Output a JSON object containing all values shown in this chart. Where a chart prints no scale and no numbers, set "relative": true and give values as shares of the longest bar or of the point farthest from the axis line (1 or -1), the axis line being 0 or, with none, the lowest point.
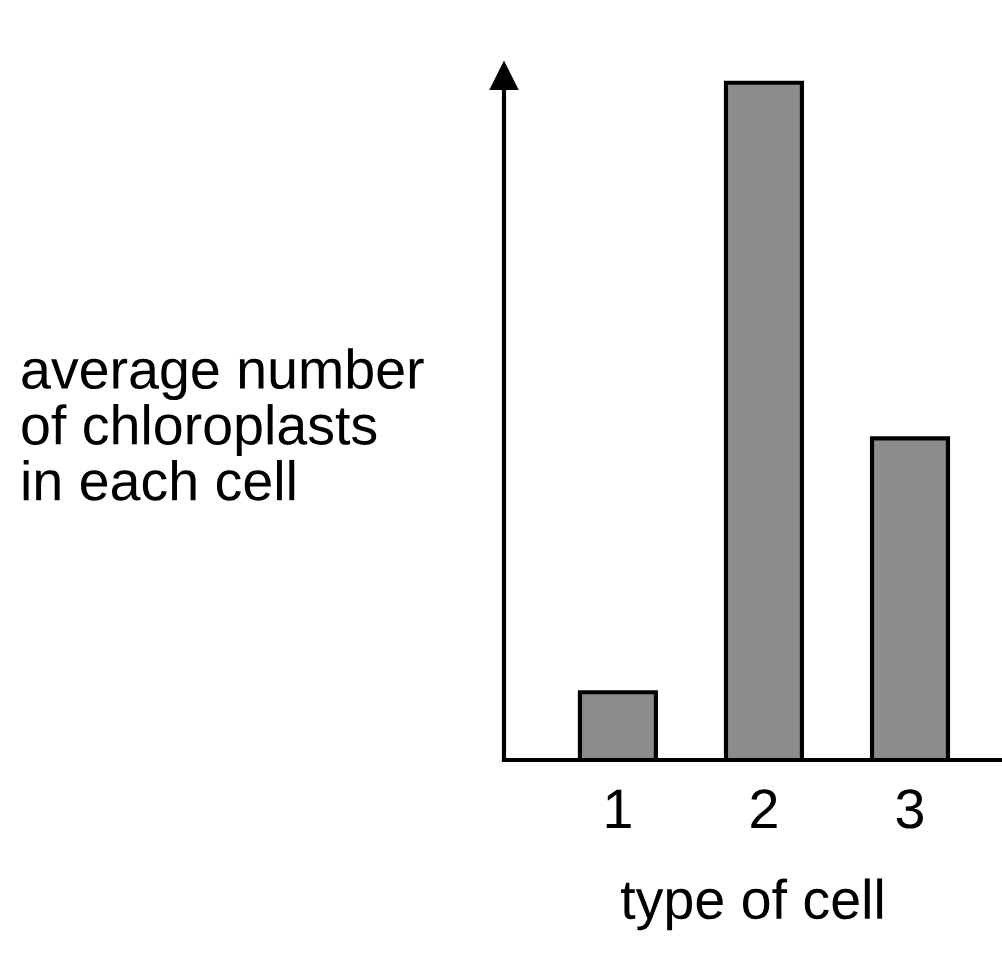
{
  "chart_data": {
    "type": "bar",
    "relative": true,
    "xlabel": "type of cell",
    "ylabel": "average number\nof chloroplasts\nin each cell",
    "categories": [
      "1",
      "2",
      "3"
    ],
    "values": [
      0.1,
      1,
      0.475
    ],
    "color": "#8c8c8c",
    "grid": false,
    "legend": false
  }
}
